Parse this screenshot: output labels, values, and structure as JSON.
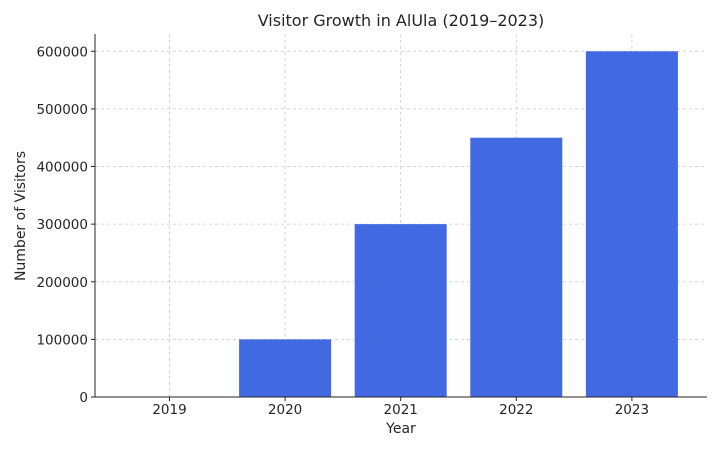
{
  "chart_data": {
    "type": "bar",
    "title": "Visitor Growth in AlUla (2019–2023)",
    "xlabel": "Year",
    "ylabel": "Number of Visitors",
    "categories": [
      "2019",
      "2020",
      "2021",
      "2022",
      "2023"
    ],
    "values": [
      0,
      100000,
      300000,
      450000,
      600000
    ],
    "ylim": [
      0,
      630000
    ],
    "yticks": [
      0,
      100000,
      200000,
      300000,
      400000,
      500000,
      600000
    ],
    "grid": true,
    "bar_color": "#4169e1"
  }
}
